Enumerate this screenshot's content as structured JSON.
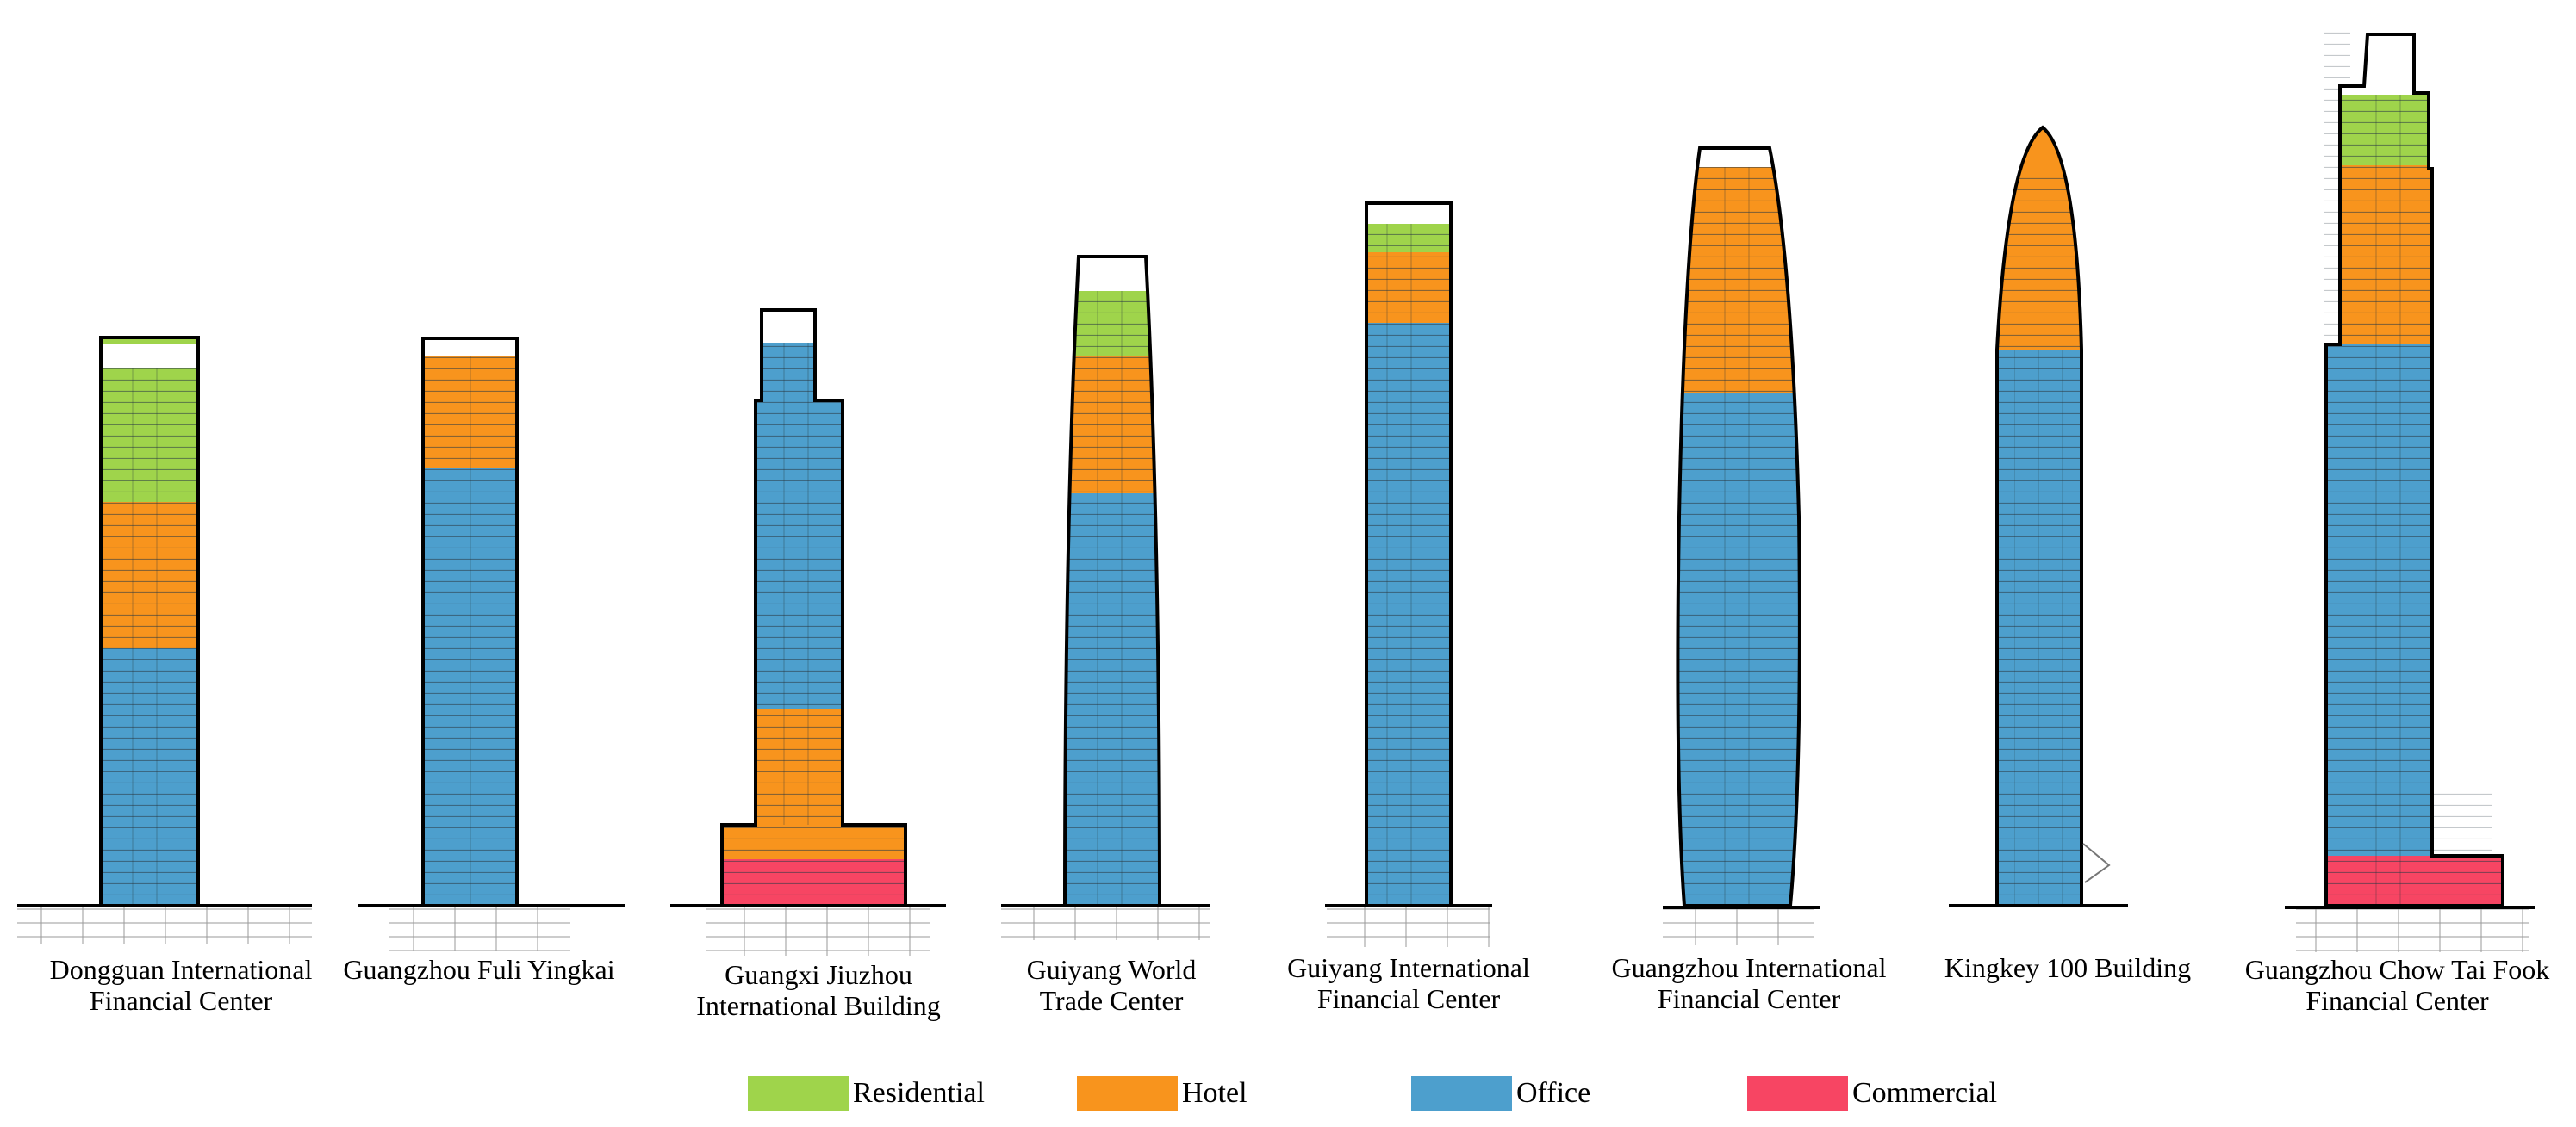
{
  "colors": {
    "residential": "#9fd44b",
    "hotel": "#f8941d",
    "office": "#4d9fcd",
    "commercial": "#f74563",
    "outline": "#000000",
    "hatch": "#3a3a3a"
  },
  "legend": [
    {
      "key": "residential",
      "label": "Residential"
    },
    {
      "key": "hotel",
      "label": "Hotel"
    },
    {
      "key": "office",
      "label": "Office"
    },
    {
      "key": "commercial",
      "label": "Commercial"
    }
  ],
  "buildings": [
    {
      "id": "dongguan",
      "name_lines": [
        "Dongguan International",
        "Financial Center"
      ]
    },
    {
      "id": "fuli",
      "name_lines": [
        "Guangzhou Fuli Yingkai"
      ]
    },
    {
      "id": "jiuzhou",
      "name_lines": [
        "Guangxi Jiuzhou",
        "International Building"
      ]
    },
    {
      "id": "guiyang-wtc",
      "name_lines": [
        "Guiyang World",
        "Trade Center"
      ]
    },
    {
      "id": "guiyang-ifc",
      "name_lines": [
        "Guiyang International",
        "Financial Center"
      ]
    },
    {
      "id": "guangzhou-ifc",
      "name_lines": [
        "Guangzhou International",
        "Financial Center"
      ]
    },
    {
      "id": "kingkey",
      "name_lines": [
        "Kingkey 100 Building"
      ]
    },
    {
      "id": "ctf",
      "name_lines": [
        "Guangzhou Chow Tai Fook",
        "Financial Center"
      ]
    }
  ]
}
